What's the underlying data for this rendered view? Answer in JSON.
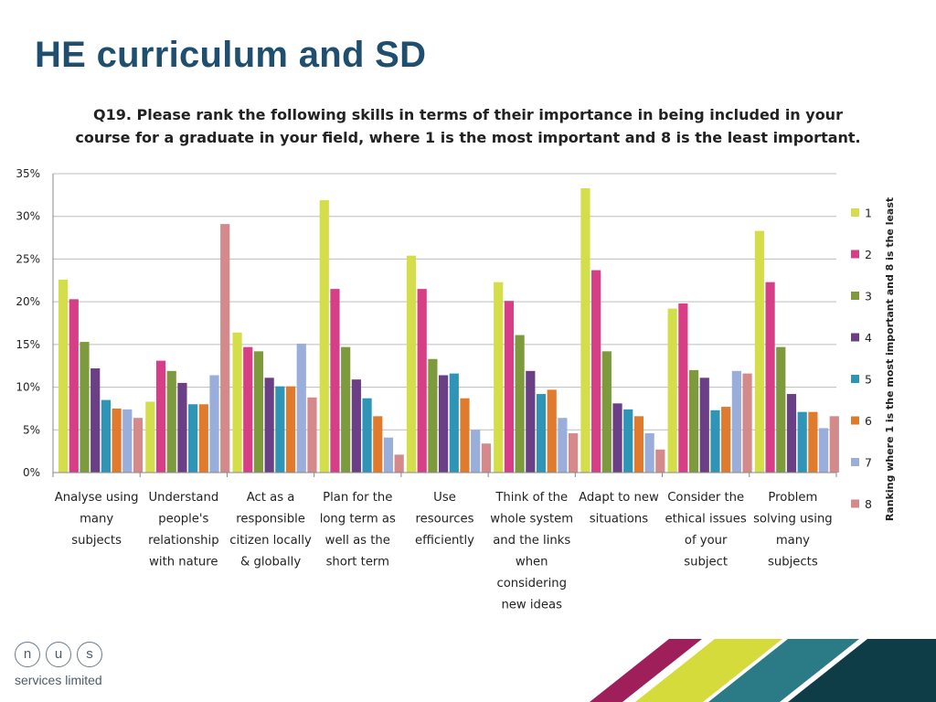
{
  "slide": {
    "title": "HE curriculum and SD"
  },
  "logo": {
    "letters": [
      "n",
      "u",
      "s"
    ],
    "text": "services limited"
  },
  "decoration": {
    "stripe_colors": [
      "#9e1f5a",
      "#d4db3a",
      "#2b7b86",
      "#0f3d47"
    ]
  },
  "chart_data": {
    "type": "bar",
    "title_lines": [
      "Q19. Please rank the following skills in terms of their importance in being included in your",
      "course for a graduate in your field, where 1 is the most important and 8 is the least important."
    ],
    "categories": [
      [
        "Analyse using",
        "many",
        "subjects"
      ],
      [
        "Understand",
        "people's",
        "relationship",
        "with nature"
      ],
      [
        "Act as a",
        "responsible",
        "citizen locally",
        "& globally"
      ],
      [
        "Plan for the",
        "long term as",
        "well as the",
        "short term"
      ],
      [
        "Use",
        "resources",
        "efficiently"
      ],
      [
        "Think of the",
        "whole system",
        "and the links",
        "when",
        "considering",
        "new ideas"
      ],
      [
        "Adapt to new",
        "situations"
      ],
      [
        "Consider the",
        "ethical issues",
        "of your",
        "subject"
      ],
      [
        "Problem",
        "solving using",
        "many",
        "subjects"
      ]
    ],
    "series": [
      {
        "name": "1",
        "color": "#d4de4a",
        "values": [
          22.6,
          8.3,
          16.4,
          31.9,
          25.4,
          22.3,
          33.3,
          19.2,
          28.3
        ]
      },
      {
        "name": "2",
        "color": "#d63f86",
        "values": [
          20.3,
          13.1,
          14.7,
          21.5,
          21.5,
          20.1,
          23.7,
          19.8,
          22.3
        ]
      },
      {
        "name": "3",
        "color": "#7d9b3d",
        "values": [
          15.3,
          11.9,
          14.2,
          14.7,
          13.3,
          16.1,
          14.2,
          12.0,
          14.7
        ]
      },
      {
        "name": "4",
        "color": "#6a3f86",
        "values": [
          12.2,
          10.5,
          11.1,
          10.9,
          11.4,
          11.9,
          8.1,
          11.1,
          9.2
        ]
      },
      {
        "name": "5",
        "color": "#2f95b6",
        "values": [
          8.5,
          8.0,
          10.1,
          8.7,
          11.6,
          9.2,
          7.4,
          7.3,
          7.1
        ]
      },
      {
        "name": "6",
        "color": "#e07b2d",
        "values": [
          7.5,
          8.0,
          10.1,
          6.6,
          8.7,
          9.7,
          6.6,
          7.7,
          7.1
        ]
      },
      {
        "name": "7",
        "color": "#9aaedb",
        "values": [
          7.4,
          11.4,
          15.1,
          4.1,
          5.0,
          6.4,
          4.6,
          11.9,
          5.2
        ]
      },
      {
        "name": "8",
        "color": "#d48a8a",
        "values": [
          6.4,
          29.1,
          8.8,
          2.1,
          3.4,
          4.6,
          2.7,
          11.6,
          6.6
        ]
      }
    ],
    "yticks": [
      "0%",
      "5%",
      "10%",
      "15%",
      "20%",
      "25%",
      "30%",
      "35%"
    ],
    "ylim": [
      0,
      35
    ],
    "grid": true,
    "legend_position": "right",
    "legend_title": "Ranking where 1 is the most important and 8 is the least"
  }
}
